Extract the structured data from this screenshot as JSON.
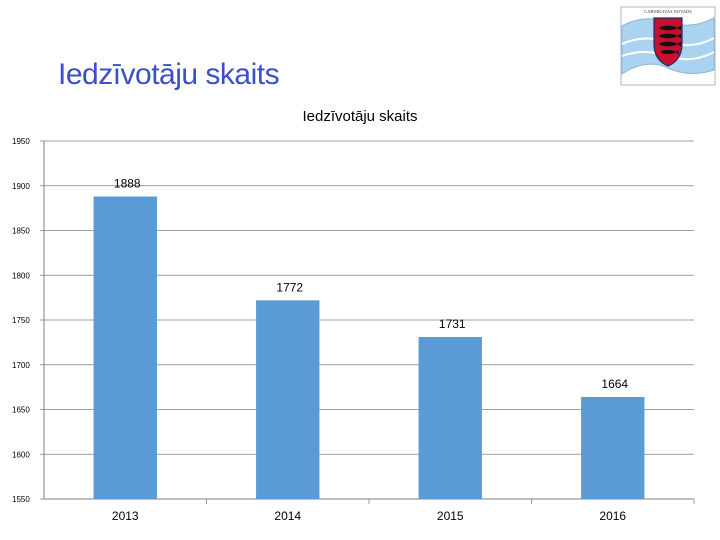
{
  "slide": {
    "title": "Iedzīvotāju skaits"
  },
  "logo": {
    "caption": "CARNIKAVAS NOVADS",
    "colors": {
      "ribbon": "#a9d3ef",
      "shield": "#c8102e",
      "border": "#1f2d6b"
    }
  },
  "chart_data": {
    "type": "bar",
    "title": "Iedzīvotāju skaits",
    "categories": [
      "2013",
      "2014",
      "2015",
      "2016"
    ],
    "values": [
      1888,
      1772,
      1731,
      1664
    ],
    "data_labels": [
      "1888",
      "1772",
      "1731",
      "1664"
    ],
    "ylim": [
      1550,
      1950
    ],
    "yticks": [
      1950,
      1900,
      1850,
      1800,
      1750,
      1700,
      1650,
      1600,
      1550
    ],
    "xlabel": "",
    "ylabel": "",
    "grid": true,
    "legend": "none",
    "bar_color": "#5b9bd5",
    "grid_color": "#808080"
  }
}
